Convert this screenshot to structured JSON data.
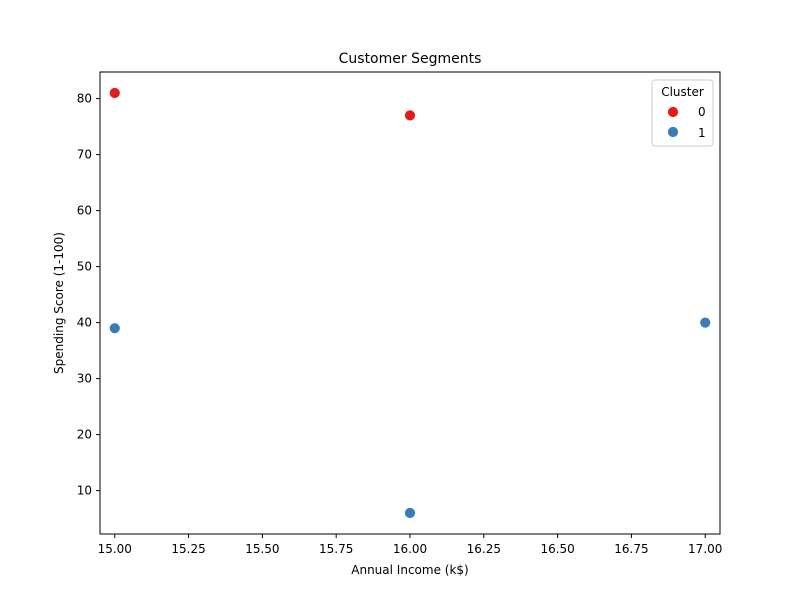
{
  "chart_data": {
    "type": "scatter",
    "title": "Customer Segments",
    "xlabel": "Annual Income (k$)",
    "ylabel": "Spending Score (1-100)",
    "xlim": [
      14.95,
      17.05
    ],
    "ylim": [
      2.25,
      84.75
    ],
    "xticks": [
      "15.00",
      "15.25",
      "15.50",
      "15.75",
      "16.00",
      "16.25",
      "16.50",
      "16.75",
      "17.00"
    ],
    "yticks": [
      "10",
      "20",
      "30",
      "40",
      "50",
      "60",
      "70",
      "80"
    ],
    "grid": false,
    "legend": {
      "title": "Cluster",
      "placement": "top-right"
    },
    "series": [
      {
        "name": "0",
        "color": "#e41a1c",
        "points": [
          {
            "x": 15,
            "y": 81
          },
          {
            "x": 16,
            "y": 77
          }
        ]
      },
      {
        "name": "1",
        "color": "#377eb8",
        "points": [
          {
            "x": 15,
            "y": 39
          },
          {
            "x": 16,
            "y": 6
          },
          {
            "x": 17,
            "y": 40
          }
        ]
      }
    ]
  }
}
